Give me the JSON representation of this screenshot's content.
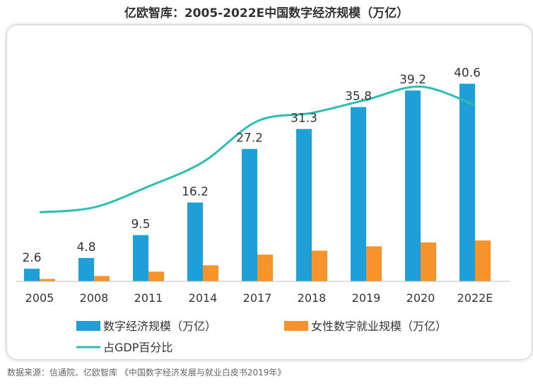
{
  "title": "亿欧智库：2005-2022E中国数字经济规模（万亿）",
  "source": "数据来源：信通院、亿欧智库 《中国数字经济发展与就业白皮书2019年》",
  "colors": {
    "blue": "#1f9fd8",
    "orange": "#f7932b",
    "teal": "#2bbfb3"
  },
  "chart_data": {
    "type": "bar",
    "title": "亿欧智库：2005-2022E中国数字经济规模（万亿）",
    "categories": [
      "2005",
      "2008",
      "2011",
      "2014",
      "2017",
      "2018",
      "2019",
      "2020",
      "2022E"
    ],
    "series": [
      {
        "name": "数字经济规模（万亿）",
        "type": "bar",
        "color": "#1f9fd8",
        "values": [
          2.6,
          4.8,
          9.5,
          16.2,
          27.2,
          31.3,
          35.8,
          39.2,
          40.6
        ],
        "labels": [
          "2.6",
          "4.8",
          "9.5",
          "16.2",
          "27.2",
          "31.3",
          "35.8",
          "39.2",
          "40.6"
        ]
      },
      {
        "name": "女性数字就业规模（万亿）",
        "type": "bar",
        "color": "#f7932b",
        "values": [
          0.5,
          1.1,
          2.0,
          3.3,
          5.5,
          6.3,
          7.2,
          8.0,
          8.4
        ]
      },
      {
        "name": "占GDP百分比",
        "type": "line",
        "color": "#2bbfb3",
        "values": [
          14.2,
          15.2,
          19.5,
          24.5,
          32.9,
          34.6,
          37.3,
          40.0,
          36.2
        ]
      }
    ],
    "ylim": [
      0,
      44
    ],
    "legend_position": "bottom",
    "grid": false
  }
}
